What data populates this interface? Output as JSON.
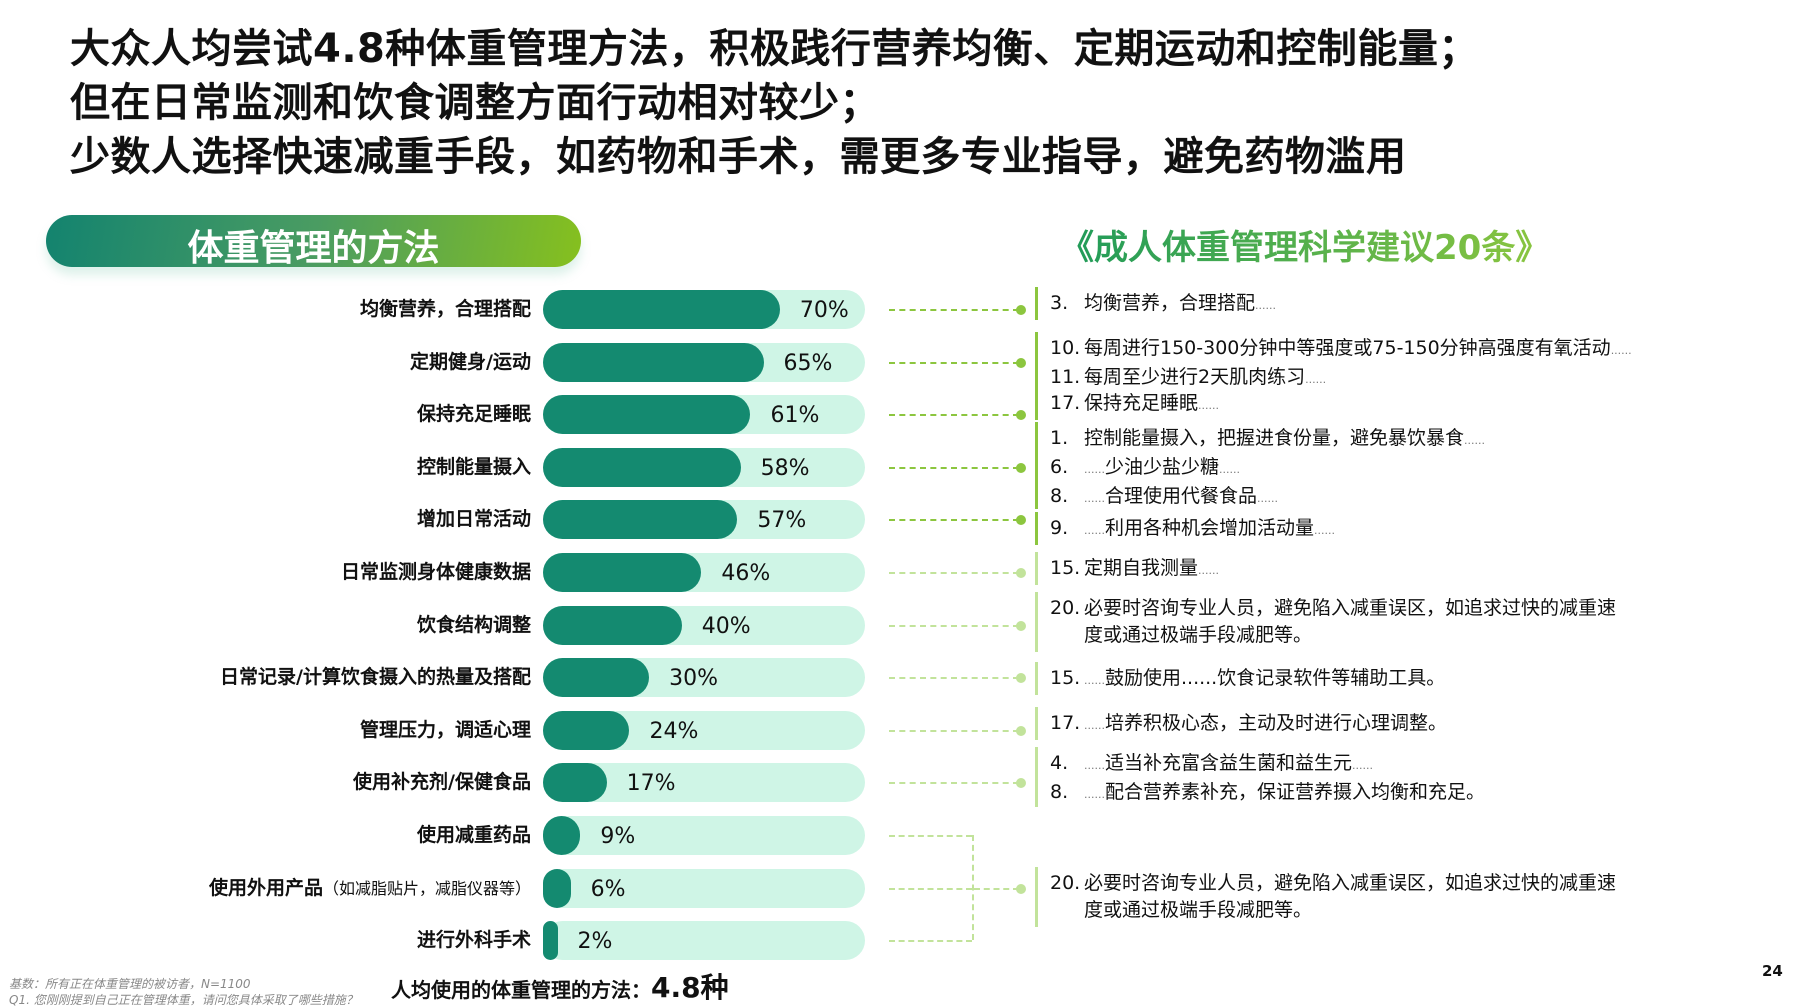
{
  "headline": [
    "大众人均尝试4.8种体重管理方法，积极践行营养均衡、定期运动和控制能量；",
    "但在日常监测和饮食调整方面行动相对较少；",
    "少数人选择快速减重手段，如药物和手术，需更多专业指导，避免药物滥用"
  ],
  "section_title": "体重管理的方法",
  "guide_title": "《成人体重管理科学建议20条》",
  "chart_data": {
    "type": "bar",
    "orientation": "horizontal",
    "categories": [
      "均衡营养，合理搭配",
      "定期健身/运动",
      "保持充足睡眠",
      "控制能量摄入",
      "增加日常活动",
      "日常监测身体健康数据",
      "饮食结构调整",
      "日常记录/计算饮食摄入的热量及搭配",
      "管理压力，调适心理",
      "使用补充剂/保健食品",
      "使用减重药品",
      "使用外用产品",
      "进行外科手术"
    ],
    "category_notes": [
      "",
      "",
      "",
      "",
      "",
      "",
      "",
      "",
      "",
      "",
      "",
      "（如减脂贴片，减脂仪器等）",
      ""
    ],
    "values": [
      70,
      65,
      61,
      58,
      57,
      46,
      40,
      30,
      24,
      17,
      9,
      6,
      2
    ],
    "value_labels": [
      "70%",
      "65%",
      "61%",
      "58%",
      "57%",
      "46%",
      "40%",
      "30%",
      "24%",
      "17%",
      "9%",
      "6%",
      "2%"
    ],
    "unit": "%",
    "colors": {
      "fill": "#148a70",
      "track": "#cff5e6"
    }
  },
  "guide_groups": [
    {
      "rows": [
        0
      ],
      "strong": true,
      "items": [
        {
          "num": "3.",
          "pre": "",
          "text": "均衡营养，合理搭配",
          "post": "......"
        }
      ]
    },
    {
      "rows": [
        1
      ],
      "strong": true,
      "items": [
        {
          "num": "10.",
          "pre": "",
          "text": "每周进行150-300分钟中等强度或75-150分钟高强度有氧活动",
          "post": "......"
        },
        {
          "num": "11.",
          "pre": "",
          "text": "每周至少进行2天肌肉练习",
          "post": "......"
        }
      ]
    },
    {
      "rows": [
        2
      ],
      "strong": true,
      "items": [
        {
          "num": "17.",
          "pre": "",
          "text": "保持充足睡眠",
          "post": "......"
        }
      ]
    },
    {
      "rows": [
        3
      ],
      "strong": true,
      "items": [
        {
          "num": "1.",
          "pre": "",
          "text": "控制能量摄入，把握进食份量，避免暴饮暴食",
          "post": "......"
        },
        {
          "num": "6.",
          "pre": "......",
          "text": "少油少盐少糖",
          "post": "......"
        },
        {
          "num": "8.",
          "pre": "......",
          "text": "合理使用代餐食品",
          "post": "......"
        }
      ]
    },
    {
      "rows": [
        4
      ],
      "strong": true,
      "items": [
        {
          "num": "9.",
          "pre": "......",
          "text": "利用各种机会增加活动量",
          "post": "......"
        }
      ]
    },
    {
      "rows": [
        5
      ],
      "strong": false,
      "items": [
        {
          "num": "15.",
          "pre": "",
          "text": "定期自我测量",
          "post": "......"
        }
      ]
    },
    {
      "rows": [
        6
      ],
      "strong": false,
      "items": [
        {
          "num": "20.",
          "pre": "",
          "text": "必要时咨询专业人员，避免陷入减重误区，如追求过快的减重速",
          "post": ""
        },
        {
          "num": "",
          "pre": "",
          "text": "度或通过极端手段减肥等。",
          "post": ""
        }
      ]
    },
    {
      "rows": [
        7
      ],
      "strong": false,
      "items": [
        {
          "num": "15.",
          "pre": "......",
          "text": "鼓励使用......饮食记录软件等辅助工具。",
          "post": ""
        }
      ]
    },
    {
      "rows": [
        8
      ],
      "strong": false,
      "items": [
        {
          "num": "17.",
          "pre": "......",
          "text": "培养积极心态，主动及时进行心理调整。",
          "post": ""
        }
      ]
    },
    {
      "rows": [
        9
      ],
      "strong": false,
      "items": [
        {
          "num": "4.",
          "pre": "......",
          "text": "适当补充富含益生菌和益生元",
          "post": "......"
        },
        {
          "num": "8.",
          "pre": "......",
          "text": "配合营养素补充，保证营养摄入均衡和充足。",
          "post": ""
        }
      ]
    },
    {
      "rows": [
        10,
        11,
        12
      ],
      "strong": false,
      "items": [
        {
          "num": "20.",
          "pre": "",
          "text": "必要时咨询专业人员，避免陷入减重误区，如追求过快的减重速",
          "post": ""
        },
        {
          "num": "",
          "pre": "",
          "text": "度或通过极端手段减肥等。",
          "post": ""
        }
      ]
    }
  ],
  "footnote": [
    "基数：所有正在体重管理的被访者，N=1100",
    "Q1. 您刚刚提到自己正在管理体重，请问您具体采取了哪些措施？"
  ],
  "average": {
    "label": "人均使用的体重管理的方法：",
    "value": "4.8种"
  },
  "page_number": "24",
  "colors": {
    "connector_strong": "#8cc63f",
    "connector_light": "#c2e39b",
    "title_green": "#4aa84a"
  }
}
